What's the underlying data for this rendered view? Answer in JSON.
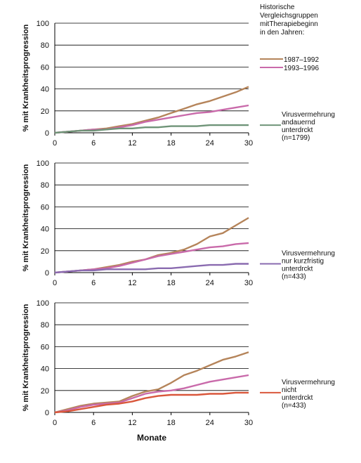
{
  "legend_header": [
    "Historische",
    "Vergleichsgruppen",
    "mitTherapiebeginn",
    "in den Jahren:"
  ],
  "legend_historical": [
    {
      "label": "1987–1992",
      "color": "#b5845a"
    },
    {
      "label": "1993–1996",
      "color": "#c96aaa"
    }
  ],
  "chart_data": [
    {
      "type": "line",
      "ylabel": "% mit Krankheitsprogression",
      "xlabel": "",
      "xlim": [
        0,
        30
      ],
      "ylim": [
        0,
        100
      ],
      "xticks": [
        "0",
        "6",
        "12",
        "18",
        "24",
        "30"
      ],
      "yticks": [
        "0",
        "20",
        "40",
        "60",
        "80",
        "100"
      ],
      "grid": "horizontal",
      "series": [
        {
          "name": "1987–1992",
          "color": "#b5845a",
          "x": [
            0,
            2,
            4,
            6,
            8,
            10,
            12,
            14,
            16,
            18,
            20,
            22,
            24,
            26,
            28,
            30
          ],
          "y": [
            0,
            1,
            2,
            3,
            4,
            6,
            8,
            11,
            14,
            18,
            22,
            26,
            29,
            33,
            37,
            42
          ]
        },
        {
          "name": "1993–1996",
          "color": "#c96aaa",
          "x": [
            0,
            2,
            4,
            6,
            8,
            10,
            12,
            14,
            16,
            18,
            20,
            22,
            24,
            26,
            28,
            30
          ],
          "y": [
            0,
            1,
            2,
            3,
            3,
            5,
            7,
            10,
            12,
            14,
            16,
            18,
            19,
            21,
            23,
            25
          ]
        },
        {
          "name": "Virusvermehrung andauernd unterdrckt (n=1799)",
          "color": "#6f9478",
          "x": [
            0,
            2,
            4,
            6,
            8,
            10,
            12,
            14,
            16,
            18,
            20,
            22,
            24,
            26,
            28,
            30
          ],
          "y": [
            0,
            1,
            2,
            2,
            3,
            4,
            4,
            5,
            5,
            6,
            6,
            6,
            7,
            7,
            7,
            7
          ]
        }
      ],
      "legend_entry": {
        "lines": [
          "Virusvermehrung",
          "andauernd",
          "unterdrckt",
          "(n=1799)"
        ],
        "color": "#6f9478"
      }
    },
    {
      "type": "line",
      "ylabel": "% mit Krankheitsprogression",
      "xlabel": "",
      "xlim": [
        0,
        30
      ],
      "ylim": [
        0,
        100
      ],
      "xticks": [
        "0",
        "6",
        "12",
        "18",
        "24",
        "30"
      ],
      "yticks": [
        "0",
        "20",
        "40",
        "60",
        "80",
        "100"
      ],
      "grid": "horizontal",
      "series": [
        {
          "name": "1987–1992",
          "color": "#b5845a",
          "x": [
            0,
            2,
            4,
            6,
            8,
            10,
            12,
            14,
            16,
            18,
            20,
            22,
            24,
            26,
            28,
            30
          ],
          "y": [
            0,
            1,
            2,
            3,
            5,
            7,
            10,
            12,
            16,
            18,
            21,
            26,
            33,
            36,
            43,
            50
          ]
        },
        {
          "name": "1993–1996",
          "color": "#c96aaa",
          "x": [
            0,
            2,
            4,
            6,
            8,
            10,
            12,
            14,
            16,
            18,
            20,
            22,
            24,
            26,
            28,
            30
          ],
          "y": [
            0,
            1,
            2,
            3,
            4,
            6,
            9,
            12,
            15,
            17,
            19,
            21,
            23,
            24,
            26,
            27
          ]
        },
        {
          "name": "Virusvermehrung nur kurzfristig unterdrckt (n=433)",
          "color": "#8a6bb0",
          "x": [
            0,
            2,
            4,
            6,
            8,
            10,
            12,
            14,
            16,
            18,
            20,
            22,
            24,
            26,
            28,
            30
          ],
          "y": [
            0,
            1,
            2,
            2,
            3,
            3,
            3,
            3,
            4,
            4,
            5,
            6,
            7,
            7,
            8,
            8
          ]
        }
      ],
      "legend_entry": {
        "lines": [
          "Virusvermehrung",
          "nur kurzfristig",
          "unterdrckt",
          "(n=433)"
        ],
        "color": "#8a6bb0"
      }
    },
    {
      "type": "line",
      "ylabel": "% mit Krankheitsprogression",
      "xlabel": "Monate",
      "xlim": [
        0,
        30
      ],
      "ylim": [
        0,
        100
      ],
      "xticks": [
        "0",
        "6",
        "12",
        "18",
        "24",
        "30"
      ],
      "yticks": [
        "0",
        "20",
        "40",
        "60",
        "80",
        "100"
      ],
      "grid": "horizontal",
      "series": [
        {
          "name": "1987–1992",
          "color": "#b5845a",
          "x": [
            0,
            2,
            4,
            6,
            8,
            10,
            12,
            14,
            16,
            18,
            20,
            22,
            24,
            26,
            28,
            30
          ],
          "y": [
            0,
            3,
            6,
            8,
            9,
            10,
            15,
            19,
            21,
            27,
            34,
            38,
            43,
            48,
            51,
            55
          ]
        },
        {
          "name": "1993–1996",
          "color": "#c96aaa",
          "x": [
            0,
            2,
            4,
            6,
            8,
            10,
            12,
            14,
            16,
            18,
            20,
            22,
            24,
            26,
            28,
            30
          ],
          "y": [
            0,
            2,
            5,
            7,
            8,
            9,
            13,
            17,
            19,
            20,
            22,
            25,
            28,
            30,
            32,
            34
          ]
        },
        {
          "name": "Virusvermehrung nicht unterdrckt (n=433)",
          "color": "#d9573b",
          "x": [
            0,
            2,
            4,
            6,
            8,
            10,
            12,
            14,
            16,
            18,
            20,
            22,
            24,
            26,
            28,
            30
          ],
          "y": [
            0,
            1,
            3,
            5,
            7,
            8,
            10,
            13,
            15,
            16,
            16,
            16,
            17,
            17,
            18,
            18
          ]
        }
      ],
      "legend_entry": {
        "lines": [
          "Virusvermehrung",
          "nicht",
          "unterdrckt",
          "(n=433)"
        ],
        "color": "#d9573b"
      }
    }
  ]
}
